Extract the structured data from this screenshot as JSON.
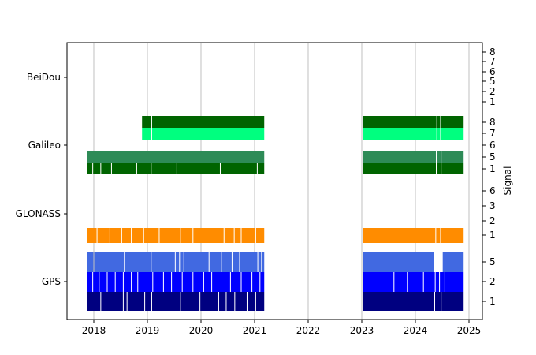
{
  "chart_data": {
    "type": "bar",
    "title": "",
    "xlabel": "",
    "ylabel_right": "Signal",
    "x_ticks": [
      "2018",
      "2019",
      "2020",
      "2021",
      "2022",
      "2023",
      "2024",
      "2025"
    ],
    "xlim": [
      2017.5,
      2025.25
    ],
    "grid": "vertical",
    "systems": [
      "GPS",
      "GLONASS",
      "Galileo",
      "BeiDou"
    ],
    "right_ticks": [
      {
        "system": "GPS",
        "labels": [
          "1",
          "2",
          "5"
        ]
      },
      {
        "system": "GLONASS",
        "labels": [
          "1",
          "2",
          "3",
          "6"
        ]
      },
      {
        "system": "Galileo",
        "labels": [
          "1",
          "5",
          "6",
          "7",
          "8"
        ]
      },
      {
        "system": "BeiDou",
        "labels": [
          "1",
          "2",
          "5",
          "6",
          "7",
          "8"
        ]
      }
    ],
    "rows": [
      {
        "system": "GPS",
        "signal": "1",
        "color": "#000080",
        "spans": [
          [
            2017.88,
            2021.18
          ],
          [
            2023.02,
            2024.9
          ]
        ],
        "gaps": [
          2018.13,
          2018.55,
          2018.62,
          2018.95,
          2019.08,
          2019.62,
          2019.98,
          2020.33,
          2020.47,
          2020.63,
          2020.86,
          2021.02,
          2024.36,
          2024.48
        ]
      },
      {
        "system": "GPS",
        "signal": "2",
        "color": "#0000ff",
        "spans": [
          [
            2017.88,
            2021.18
          ],
          [
            2023.02,
            2024.9
          ]
        ],
        "gaps": [
          2017.98,
          2018.1,
          2018.25,
          2018.4,
          2018.55,
          2018.7,
          2018.82,
          2019.1,
          2019.3,
          2019.45,
          2019.65,
          2019.85,
          2020.05,
          2020.2,
          2020.55,
          2020.75,
          2020.95,
          2021.1,
          2023.6,
          2023.85,
          2024.15,
          2024.37,
          2024.45,
          2024.55
        ]
      },
      {
        "system": "GPS",
        "signal": "5",
        "color": "#4169e1",
        "spans": [
          [
            2017.88,
            2021.18
          ],
          [
            2023.02,
            2024.35
          ],
          [
            2024.51,
            2024.9
          ]
        ],
        "gaps": [
          2018.0,
          2018.57,
          2019.07,
          2019.52,
          2019.6,
          2019.68,
          2020.15,
          2020.38,
          2020.58,
          2020.72,
          2021.06,
          2021.13
        ]
      },
      {
        "system": "GLONASS",
        "signal": "1",
        "color": "#ff8c00",
        "spans": [
          [
            2017.88,
            2021.18
          ],
          [
            2023.02,
            2024.9
          ]
        ],
        "gaps": [
          2018.06,
          2018.3,
          2018.52,
          2018.7,
          2018.93,
          2019.22,
          2019.62,
          2019.85,
          2020.43,
          2020.62,
          2020.75,
          2021.02,
          2024.38,
          2024.47
        ]
      },
      {
        "system": "Galileo",
        "signal": "1",
        "color": "#006400",
        "spans": [
          [
            2017.88,
            2021.18
          ],
          [
            2023.02,
            2024.9
          ]
        ],
        "gaps": [
          2017.98,
          2018.13,
          2018.33,
          2018.8,
          2019.07,
          2019.55,
          2020.36,
          2021.05,
          2024.39,
          2024.48
        ]
      },
      {
        "system": "Galileo",
        "signal": "5",
        "color": "#2e8b57",
        "spans": [
          [
            2017.88,
            2021.18
          ],
          [
            2023.02,
            2024.9
          ]
        ],
        "gaps": [
          2024.39,
          2024.48
        ]
      },
      {
        "system": "Galileo",
        "signal": "7",
        "color": "#00ff7f",
        "spans": [
          [
            2018.9,
            2021.18
          ],
          [
            2023.02,
            2024.9
          ]
        ],
        "gaps": [
          2019.08,
          2024.4,
          2024.47
        ]
      },
      {
        "system": "Galileo",
        "signal": "8",
        "color": "#006400",
        "spans": [
          [
            2018.9,
            2021.18
          ],
          [
            2023.02,
            2024.9
          ]
        ],
        "gaps": [
          2019.08,
          2024.4,
          2024.47
        ]
      }
    ]
  }
}
